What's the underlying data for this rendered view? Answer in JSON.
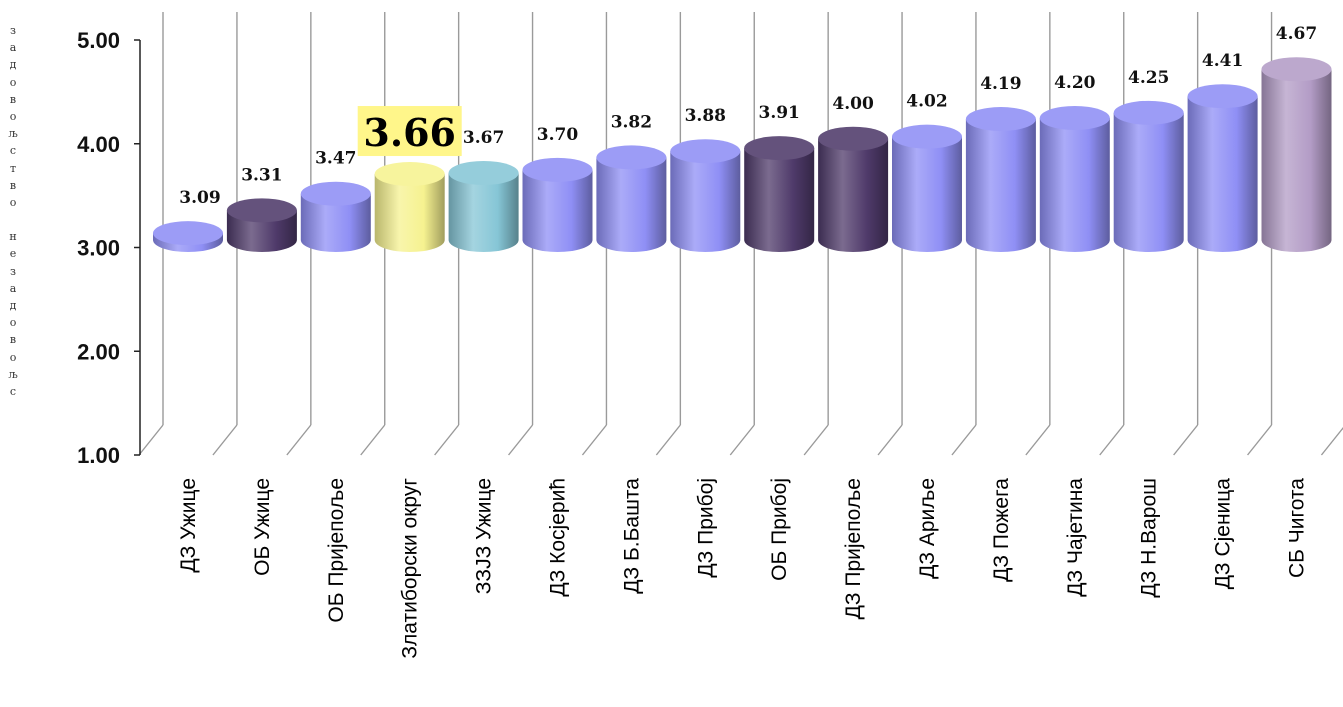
{
  "chart_data": {
    "type": "bar",
    "ylabel": "задовољство незадовољс",
    "ylim": [
      1.0,
      5.0
    ],
    "yticks": [
      "1.00",
      "2.00",
      "3.00",
      "4.00",
      "5.00"
    ],
    "grid": false,
    "categories": [
      "ДЗ Ужице",
      "ОБ Ужице",
      "ОБ Пријепоље",
      "Златиборски округ",
      "ЗЗЈЗ Ужице",
      "ДЗ Косјерић",
      "ДЗ Б.Башта",
      "ДЗ Прибој",
      "ОБ Прибој",
      "ДЗ Пријепоље",
      "ДЗ Ариље",
      "ДЗ Пожега",
      "ДЗ Чајетина",
      "ДЗ Н.Варош",
      "ДЗ Сјеница",
      "СБ Чигота"
    ],
    "values": [
      3.09,
      3.31,
      3.47,
      3.66,
      3.67,
      3.7,
      3.82,
      3.88,
      3.91,
      4.0,
      4.02,
      4.19,
      4.2,
      4.25,
      4.41,
      4.67
    ],
    "value_labels": [
      "3.09",
      "3.31",
      "3.47",
      "3.66",
      "3.67",
      "3.70",
      "3.82",
      "3.88",
      "3.91",
      "4.00",
      "4.02",
      "4.19",
      "4.20",
      "4.25",
      "4.41",
      "4.67"
    ],
    "highlight_index": 3,
    "bar_colors": [
      "#8f8ff5",
      "#4f3a6a",
      "#8f8ff5",
      "#f6f290",
      "#86c6d6",
      "#8f8ff5",
      "#8f8ff5",
      "#8f8ff5",
      "#4f3a6a",
      "#4f3a6a",
      "#8f8ff5",
      "#8f8ff5",
      "#8f8ff5",
      "#8f8ff5",
      "#8f8ff5",
      "#b39cc6"
    ],
    "highlight_label_bg": "#fff68a"
  }
}
